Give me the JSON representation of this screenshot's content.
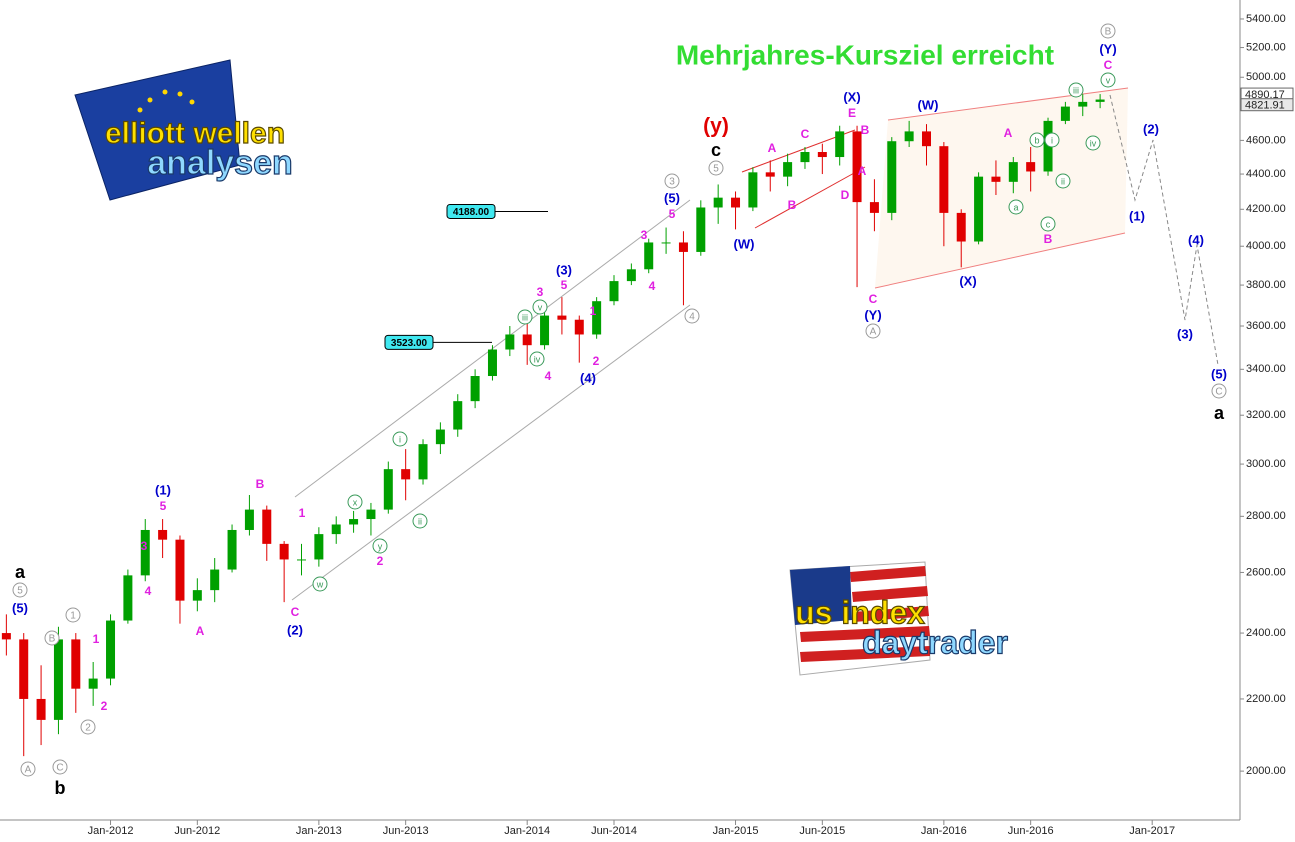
{
  "chart_data": {
    "type": "candlestick",
    "title": "Mehrjahres-Kursziel erreicht",
    "log_scale": true,
    "up_color": "#00a000",
    "down_color": "#e00000",
    "x": [
      "2011-07",
      "2011-08",
      "2011-09",
      "2011-10",
      "2011-11",
      "2011-12",
      "2012-01",
      "2012-02",
      "2012-03",
      "2012-04",
      "2012-05",
      "2012-06",
      "2012-07",
      "2012-08",
      "2012-09",
      "2012-10",
      "2012-11",
      "2012-12",
      "2013-01",
      "2013-02",
      "2013-03",
      "2013-04",
      "2013-05",
      "2013-06",
      "2013-07",
      "2013-08",
      "2013-09",
      "2013-10",
      "2013-11",
      "2013-12",
      "2014-01",
      "2014-02",
      "2014-03",
      "2014-04",
      "2014-05",
      "2014-06",
      "2014-07",
      "2014-08",
      "2014-09",
      "2014-10",
      "2014-11",
      "2014-12",
      "2015-01",
      "2015-02",
      "2015-03",
      "2015-04",
      "2015-05",
      "2015-06",
      "2015-07",
      "2015-08",
      "2015-09",
      "2015-10",
      "2015-11",
      "2015-12",
      "2016-01",
      "2016-02",
      "2016-03",
      "2016-04",
      "2016-05",
      "2016-06",
      "2016-07",
      "2016-08",
      "2016-09",
      "2016-10"
    ],
    "open": [
      2400,
      2380,
      2200,
      2140,
      2380,
      2230,
      2260,
      2440,
      2590,
      2750,
      2715,
      2505,
      2540,
      2610,
      2750,
      2825,
      2700,
      2645,
      2645,
      2735,
      2770,
      2790,
      2825,
      2980,
      2940,
      3080,
      3140,
      3260,
      3370,
      3490,
      3560,
      3510,
      3650,
      3630,
      3560,
      3720,
      3820,
      3880,
      4020,
      4020,
      3970,
      4210,
      4265,
      4210,
      4410,
      4385,
      4470,
      4530,
      4500,
      4655,
      4240,
      4180,
      4595,
      4655,
      4565,
      4180,
      4025,
      4385,
      4355,
      4470,
      4415,
      4720,
      4810,
      4840
    ],
    "high": [
      2460,
      2400,
      2300,
      2420,
      2400,
      2310,
      2460,
      2610,
      2790,
      2790,
      2730,
      2580,
      2650,
      2770,
      2880,
      2840,
      2710,
      2700,
      2760,
      2800,
      2820,
      2850,
      3010,
      3060,
      3100,
      3170,
      3290,
      3400,
      3510,
      3600,
      3630,
      3700,
      3740,
      3650,
      3740,
      3850,
      3910,
      4040,
      4100,
      4080,
      4250,
      4340,
      4300,
      4440,
      4480,
      4520,
      4560,
      4580,
      4690,
      4690,
      4370,
      4620,
      4720,
      4700,
      4590,
      4200,
      4410,
      4480,
      4500,
      4560,
      4740,
      4840,
      4890,
      4890
    ],
    "low": [
      2330,
      2040,
      2070,
      2100,
      2160,
      2180,
      2240,
      2430,
      2570,
      2650,
      2430,
      2470,
      2500,
      2600,
      2730,
      2640,
      2500,
      2590,
      2620,
      2700,
      2740,
      2730,
      2810,
      2860,
      2920,
      3040,
      3110,
      3230,
      3350,
      3460,
      3420,
      3490,
      3560,
      3430,
      3540,
      3700,
      3800,
      3860,
      3960,
      3700,
      3950,
      4120,
      4090,
      4190,
      4300,
      4330,
      4430,
      4400,
      4450,
      3790,
      4080,
      4140,
      4560,
      4450,
      4000,
      3890,
      4010,
      4280,
      4290,
      4300,
      4390,
      4700,
      4750,
      4800
    ],
    "close": [
      2380,
      2200,
      2140,
      2380,
      2230,
      2260,
      2440,
      2590,
      2750,
      2715,
      2505,
      2540,
      2610,
      2750,
      2825,
      2700,
      2645,
      2645,
      2735,
      2770,
      2790,
      2825,
      2980,
      2940,
      3080,
      3140,
      3260,
      3370,
      3490,
      3560,
      3510,
      3650,
      3630,
      3560,
      3720,
      3820,
      3880,
      4020,
      4020,
      3970,
      4210,
      4265,
      4210,
      4410,
      4385,
      4470,
      4530,
      4500,
      4655,
      4240,
      4180,
      4595,
      4655,
      4565,
      4180,
      4025,
      4385,
      4355,
      4470,
      4415,
      4720,
      4810,
      4840,
      4855
    ],
    "xlim": [
      "2011-06",
      "2017-06"
    ],
    "xticks": [
      {
        "value": "2012-01",
        "label": "Jan-2012"
      },
      {
        "value": "2012-06",
        "label": "Jun-2012"
      },
      {
        "value": "2013-01",
        "label": "Jan-2013"
      },
      {
        "value": "2013-06",
        "label": "Jun-2013"
      },
      {
        "value": "2014-01",
        "label": "Jan-2014"
      },
      {
        "value": "2014-06",
        "label": "Jun-2014"
      },
      {
        "value": "2015-01",
        "label": "Jan-2015"
      },
      {
        "value": "2015-06",
        "label": "Jun-2015"
      },
      {
        "value": "2016-01",
        "label": "Jan-2016"
      },
      {
        "value": "2016-06",
        "label": "Jun-2016"
      },
      {
        "value": "2017-01",
        "label": "Jan-2017"
      }
    ],
    "ylim": [
      1875,
      5537
    ],
    "yticks": [
      {
        "value": 2000,
        "label": "2000.00"
      },
      {
        "value": 2200,
        "label": "2200.00"
      },
      {
        "value": 2400,
        "label": "2400.00"
      },
      {
        "value": 2600,
        "label": "2600.00"
      },
      {
        "value": 2800,
        "label": "2800.00"
      },
      {
        "value": 3000,
        "label": "3000.00"
      },
      {
        "value": 3200,
        "label": "3200.00"
      },
      {
        "value": 3400,
        "label": "3400.00"
      },
      {
        "value": 3600,
        "label": "3600.00"
      },
      {
        "value": 3800,
        "label": "3800.00"
      },
      {
        "value": 4000,
        "label": "4000.00"
      },
      {
        "value": 4200,
        "label": "4200.00"
      },
      {
        "value": 4400,
        "label": "4400.00"
      },
      {
        "value": 4600,
        "label": "4600.00"
      },
      {
        "value": 5000,
        "label": "5000.00"
      },
      {
        "value": 5200,
        "label": "5200.00"
      },
      {
        "value": 5400,
        "label": "5400.00"
      }
    ],
    "price_labels": [
      {
        "value": 4890.17,
        "label": "4890.17"
      },
      {
        "value": 4821.91,
        "label": "4821.91"
      }
    ],
    "levels": [
      {
        "value": 4188,
        "label": "4188.00"
      },
      {
        "value": 3523,
        "label": "3523.00"
      }
    ],
    "annotations": [
      {
        "text": "a",
        "style": "black"
      },
      {
        "text": "5",
        "style": "gray"
      },
      {
        "text": "(5)",
        "style": "blue"
      },
      {
        "text": "1",
        "style": "gray"
      },
      {
        "text": "B",
        "style": "gray"
      },
      {
        "text": "1",
        "style": "magenta"
      },
      {
        "text": "2",
        "style": "magenta"
      },
      {
        "text": "2",
        "style": "gray"
      },
      {
        "text": "A",
        "style": "gray"
      },
      {
        "text": "C",
        "style": "gray"
      },
      {
        "text": "b",
        "style": "black"
      },
      {
        "text": "(1)",
        "style": "blue"
      },
      {
        "text": "5",
        "style": "magenta"
      },
      {
        "text": "3",
        "style": "magenta"
      },
      {
        "text": "4",
        "style": "magenta"
      },
      {
        "text": "A",
        "style": "magenta"
      },
      {
        "text": "B",
        "style": "magenta"
      },
      {
        "text": "1",
        "style": "magenta"
      },
      {
        "text": "C",
        "style": "magenta"
      },
      {
        "text": "(2)",
        "style": "blue"
      },
      {
        "text": "w",
        "style": "green"
      },
      {
        "text": "x",
        "style": "green"
      },
      {
        "text": "y",
        "style": "green"
      },
      {
        "text": "2",
        "style": "magenta"
      },
      {
        "text": "i",
        "style": "green"
      },
      {
        "text": "ii",
        "style": "green"
      },
      {
        "text": "iii",
        "style": "green"
      },
      {
        "text": "v",
        "style": "green"
      },
      {
        "text": "3",
        "style": "magenta"
      },
      {
        "text": "iv",
        "style": "green"
      },
      {
        "text": "4",
        "style": "magenta"
      },
      {
        "text": "(3)",
        "style": "blue"
      },
      {
        "text": "5",
        "style": "magenta"
      },
      {
        "text": "1",
        "style": "magenta"
      },
      {
        "text": "2",
        "style": "magenta"
      },
      {
        "text": "(4)",
        "style": "blue"
      },
      {
        "text": "3",
        "style": "magenta"
      },
      {
        "text": "4",
        "style": "magenta"
      },
      {
        "text": "3",
        "style": "gray"
      },
      {
        "text": "(5)",
        "style": "blue"
      },
      {
        "text": "5",
        "style": "magenta"
      },
      {
        "text": "4",
        "style": "gray"
      },
      {
        "text": "(y)",
        "style": "red"
      },
      {
        "text": "c",
        "style": "black"
      },
      {
        "text": "5",
        "style": "gray"
      },
      {
        "text": "(W)",
        "style": "blue"
      },
      {
        "text": "A",
        "style": "magenta"
      },
      {
        "text": "B",
        "style": "magenta"
      },
      {
        "text": "C",
        "style": "magenta"
      },
      {
        "text": "D",
        "style": "magenta"
      },
      {
        "text": "A",
        "style": "magenta"
      },
      {
        "text": "(X)",
        "style": "blue"
      },
      {
        "text": "E",
        "style": "magenta"
      },
      {
        "text": "B",
        "style": "magenta"
      },
      {
        "text": "C",
        "style": "magenta"
      },
      {
        "text": "(Y)",
        "style": "blue"
      },
      {
        "text": "A",
        "style": "gray"
      },
      {
        "text": "(W)",
        "style": "blue"
      },
      {
        "text": "(X)",
        "style": "blue"
      },
      {
        "text": "A",
        "style": "magenta"
      },
      {
        "text": "a",
        "style": "green"
      },
      {
        "text": "b",
        "style": "green"
      },
      {
        "text": "c",
        "style": "green"
      },
      {
        "text": "B",
        "style": "magenta"
      },
      {
        "text": "i",
        "style": "green"
      },
      {
        "text": "ii",
        "style": "green"
      },
      {
        "text": "iii",
        "style": "green"
      },
      {
        "text": "iv",
        "style": "green"
      },
      {
        "text": "B",
        "style": "gray"
      },
      {
        "text": "(Y)",
        "style": "blue"
      },
      {
        "text": "C",
        "style": "magenta"
      },
      {
        "text": "v",
        "style": "green"
      },
      {
        "text": "(1)",
        "style": "blue"
      },
      {
        "text": "(2)",
        "style": "blue"
      },
      {
        "text": "(3)",
        "style": "blue"
      },
      {
        "text": "(4)",
        "style": "blue"
      },
      {
        "text": "(5)",
        "style": "blue"
      },
      {
        "text": "C",
        "style": "gray"
      },
      {
        "text": "a",
        "style": "black"
      }
    ],
    "logos": [
      {
        "lines": [
          "elliott wellen",
          "analysen"
        ]
      },
      {
        "lines": [
          "us index",
          "daytrader"
        ]
      }
    ]
  }
}
